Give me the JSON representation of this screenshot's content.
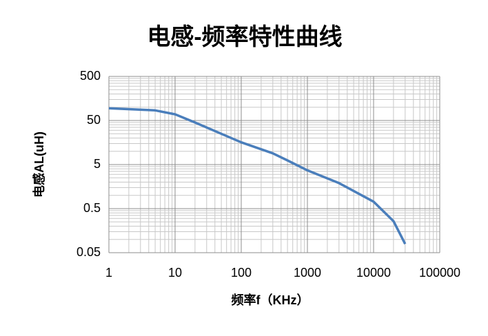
{
  "chart_data": {
    "type": "line",
    "title": "电感-频率特性曲线",
    "x_label": "频率f（KHz）",
    "y_label": "电感AL(uH)",
    "x": [
      1,
      5,
      10,
      20,
      50,
      100,
      300,
      500,
      1000,
      3000,
      10000,
      20000,
      30000
    ],
    "series": [
      {
        "name": "AL",
        "color": "#4a7ebb",
        "values": [
          95,
          85,
          69,
          45,
          25,
          16,
          9,
          6.2,
          3.7,
          1.9,
          0.72,
          0.26,
          0.079
        ]
      }
    ],
    "xlim": [
      1,
      100000
    ],
    "ylim": [
      0.05,
      500
    ],
    "xticks": [
      1,
      10,
      100,
      1000,
      10000,
      100000
    ],
    "yticks": [
      0.05,
      0.5,
      5,
      50,
      500
    ],
    "xlog": true,
    "ylog": true,
    "grid": true,
    "minor_grid": true
  }
}
